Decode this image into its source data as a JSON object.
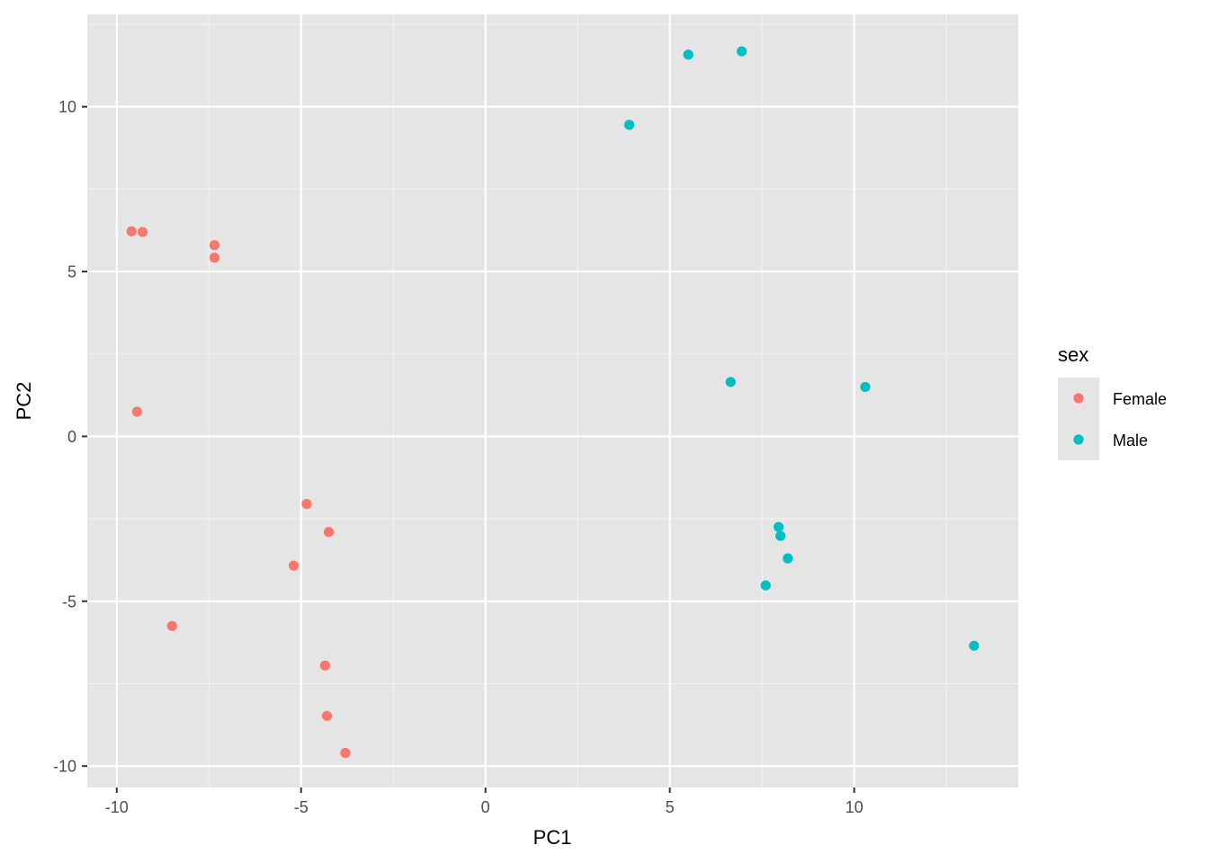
{
  "chart_data": {
    "type": "scatter",
    "title": "",
    "xlabel": "PC1",
    "ylabel": "PC2",
    "xlim": [
      -10.8,
      14.45
    ],
    "ylim": [
      -10.65,
      12.8
    ],
    "x_ticks": [
      -10,
      -5,
      0,
      5,
      10
    ],
    "y_ticks": [
      -10,
      -5,
      0,
      5,
      10
    ],
    "x_tick_labels": [
      "-10",
      "-5",
      "0",
      "5",
      "10"
    ],
    "y_tick_labels": [
      "-10",
      "-5",
      "0",
      "5",
      "10"
    ],
    "grid": true,
    "legend": {
      "title": "sex",
      "placement": "right"
    },
    "series": [
      {
        "name": "Female",
        "color": "#f8766d",
        "points": [
          {
            "x": -9.6,
            "y": 6.22
          },
          {
            "x": -9.3,
            "y": 6.2
          },
          {
            "x": -7.35,
            "y": 5.8
          },
          {
            "x": -7.35,
            "y": 5.42
          },
          {
            "x": -9.45,
            "y": 0.75
          },
          {
            "x": -4.85,
            "y": -2.05
          },
          {
            "x": -4.25,
            "y": -2.9
          },
          {
            "x": -5.2,
            "y": -3.92
          },
          {
            "x": -8.5,
            "y": -5.75
          },
          {
            "x": -4.35,
            "y": -6.95
          },
          {
            "x": -4.3,
            "y": -8.48
          },
          {
            "x": -3.8,
            "y": -9.6
          }
        ]
      },
      {
        "name": "Male",
        "color": "#00bfc4",
        "points": [
          {
            "x": 5.5,
            "y": 11.58
          },
          {
            "x": 6.95,
            "y": 11.68
          },
          {
            "x": 3.9,
            "y": 9.45
          },
          {
            "x": 6.65,
            "y": 1.65
          },
          {
            "x": 10.3,
            "y": 1.5
          },
          {
            "x": 7.95,
            "y": -2.75
          },
          {
            "x": 8.0,
            "y": -3.02
          },
          {
            "x": 8.2,
            "y": -3.7
          },
          {
            "x": 7.6,
            "y": -4.52
          },
          {
            "x": 13.25,
            "y": -6.35
          }
        ]
      }
    ]
  }
}
